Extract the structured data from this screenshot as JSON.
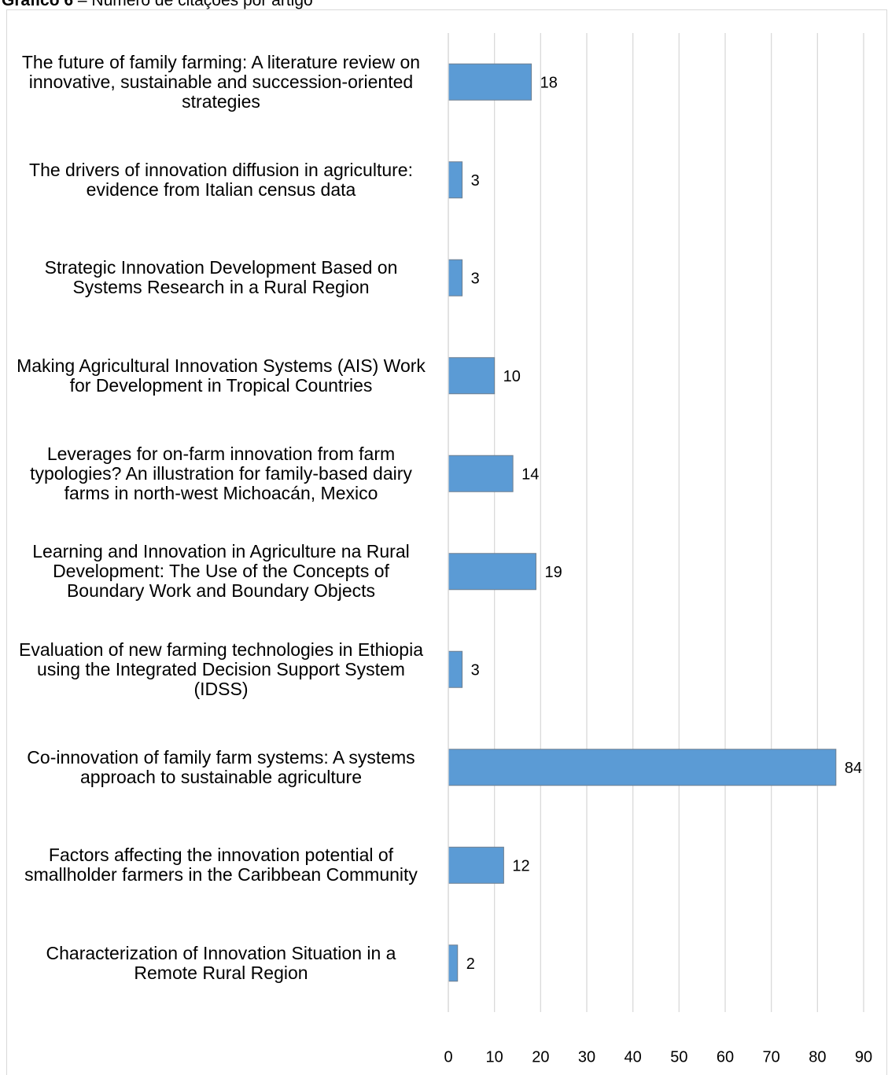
{
  "chart_data": {
    "type": "bar",
    "orientation": "horizontal",
    "figure_label": "Gráfico 6",
    "title": "– Número de citações por artigo",
    "categories": [
      "The future of family farming: A literature review on innovative, sustainable and succession-oriented strategies",
      "The drivers of innovation diffusion in agriculture: evidence from Italian census data",
      "Strategic Innovation Development Based on Systems Research in a Rural Region",
      "Making Agricultural Innovation Systems (AIS) Work for Development in Tropical Countries",
      "Leverages for on-farm innovation from farm typologies? An illustration for family-based dairy farms in north-west Michoacán, Mexico",
      "Learning and Innovation in Agriculture na Rural Development: The Use of the Concepts of Boundary Work and Boundary Objects",
      "Evaluation of new farming technologies in Ethiopia using the Integrated Decision Support System (IDSS)",
      "Co-innovation of family farm systems: A systems approach to sustainable agriculture",
      "Factors affecting the innovation potential of smallholder farmers in the Caribbean Community",
      "Characterization of Innovation Situation in a Remote Rural Region"
    ],
    "values": [
      18,
      3,
      3,
      10,
      14,
      19,
      3,
      84,
      12,
      2
    ],
    "color": "#5b9bd5",
    "xlim": [
      0,
      90
    ],
    "xticks": [
      0,
      10,
      20,
      30,
      40,
      50,
      60,
      70,
      80,
      90
    ],
    "grid": true
  }
}
